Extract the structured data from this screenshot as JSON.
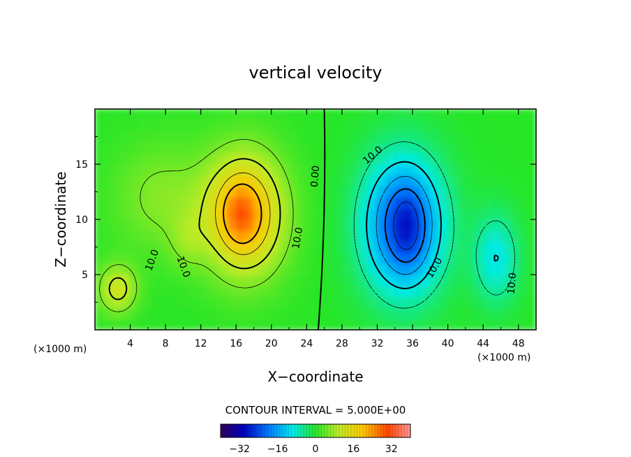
{
  "chart_data": {
    "type": "heatmap",
    "title": "vertical velocity",
    "xlabel": "X−coordinate",
    "ylabel": "Z−coordinate",
    "x_unit": "(×1000 m)",
    "z_unit": "(×1000 m)",
    "xlim": [
      0,
      50
    ],
    "ylim": [
      0,
      20
    ],
    "x_ticks": [
      4,
      8,
      12,
      16,
      20,
      24,
      28,
      32,
      36,
      40,
      44,
      48
    ],
    "x_tick_labels": [
      "4",
      "8",
      "12",
      "16",
      "20",
      "24",
      "28",
      "32",
      "36",
      "40",
      "44",
      "48"
    ],
    "y_ticks": [
      5,
      10,
      15
    ],
    "y_tick_labels": [
      "5",
      "10",
      "15"
    ],
    "contour_interval_text": "CONTOUR INTERVAL = 5.000E+00",
    "contour_interval": 5.0,
    "colorbar": {
      "range": [
        -40,
        40
      ],
      "ticks": [
        -32,
        -16,
        0,
        16,
        32
      ],
      "tick_labels": [
        "−32",
        "−16",
        "0",
        "16",
        "32"
      ]
    },
    "contour_labels": [
      {
        "text": "10.0",
        "x": 6.5,
        "z": 6.3,
        "angle": -70
      },
      {
        "text": "10.0",
        "x": 10.0,
        "z": 5.7,
        "angle": 70
      },
      {
        "text": "10.0",
        "x": 23.0,
        "z": 8.3,
        "angle": -80
      },
      {
        "text": "0.00",
        "x": 25.0,
        "z": 13.9,
        "angle": -85
      },
      {
        "text": "10.0",
        "x": 31.5,
        "z": 15.8,
        "angle": -40
      },
      {
        "text": "10.0",
        "x": 38.5,
        "z": 5.6,
        "angle": -60
      },
      {
        "text": "10.0",
        "x": 47.3,
        "z": 4.2,
        "angle": -85
      }
    ],
    "cells": [
      {
        "x": 17,
        "z": 10.5,
        "rx": 4.5,
        "rz": 5.5,
        "w": 22
      },
      {
        "x": 16.5,
        "z": 10.5,
        "rx": 1.8,
        "rz": 2.5,
        "w": 8
      },
      {
        "x": 2.6,
        "z": 3.7,
        "rx": 2.2,
        "rz": 2.2,
        "w": 12
      },
      {
        "x": 7.5,
        "z": 12.0,
        "rx": 5.5,
        "rz": 5.0,
        "w": 6
      },
      {
        "x": 10.5,
        "z": 8.0,
        "rx": 2.0,
        "rz": 2.5,
        "w": 4
      },
      {
        "x": 35,
        "z": 9.5,
        "rx": 4.5,
        "rz": 6.0,
        "w": -24
      },
      {
        "x": 35.5,
        "z": 9.3,
        "rx": 1.8,
        "rz": 3.5,
        "w": -6
      },
      {
        "x": 45.5,
        "z": 6.5,
        "rx": 2.5,
        "rz": 4.0,
        "w": -10
      }
    ]
  }
}
